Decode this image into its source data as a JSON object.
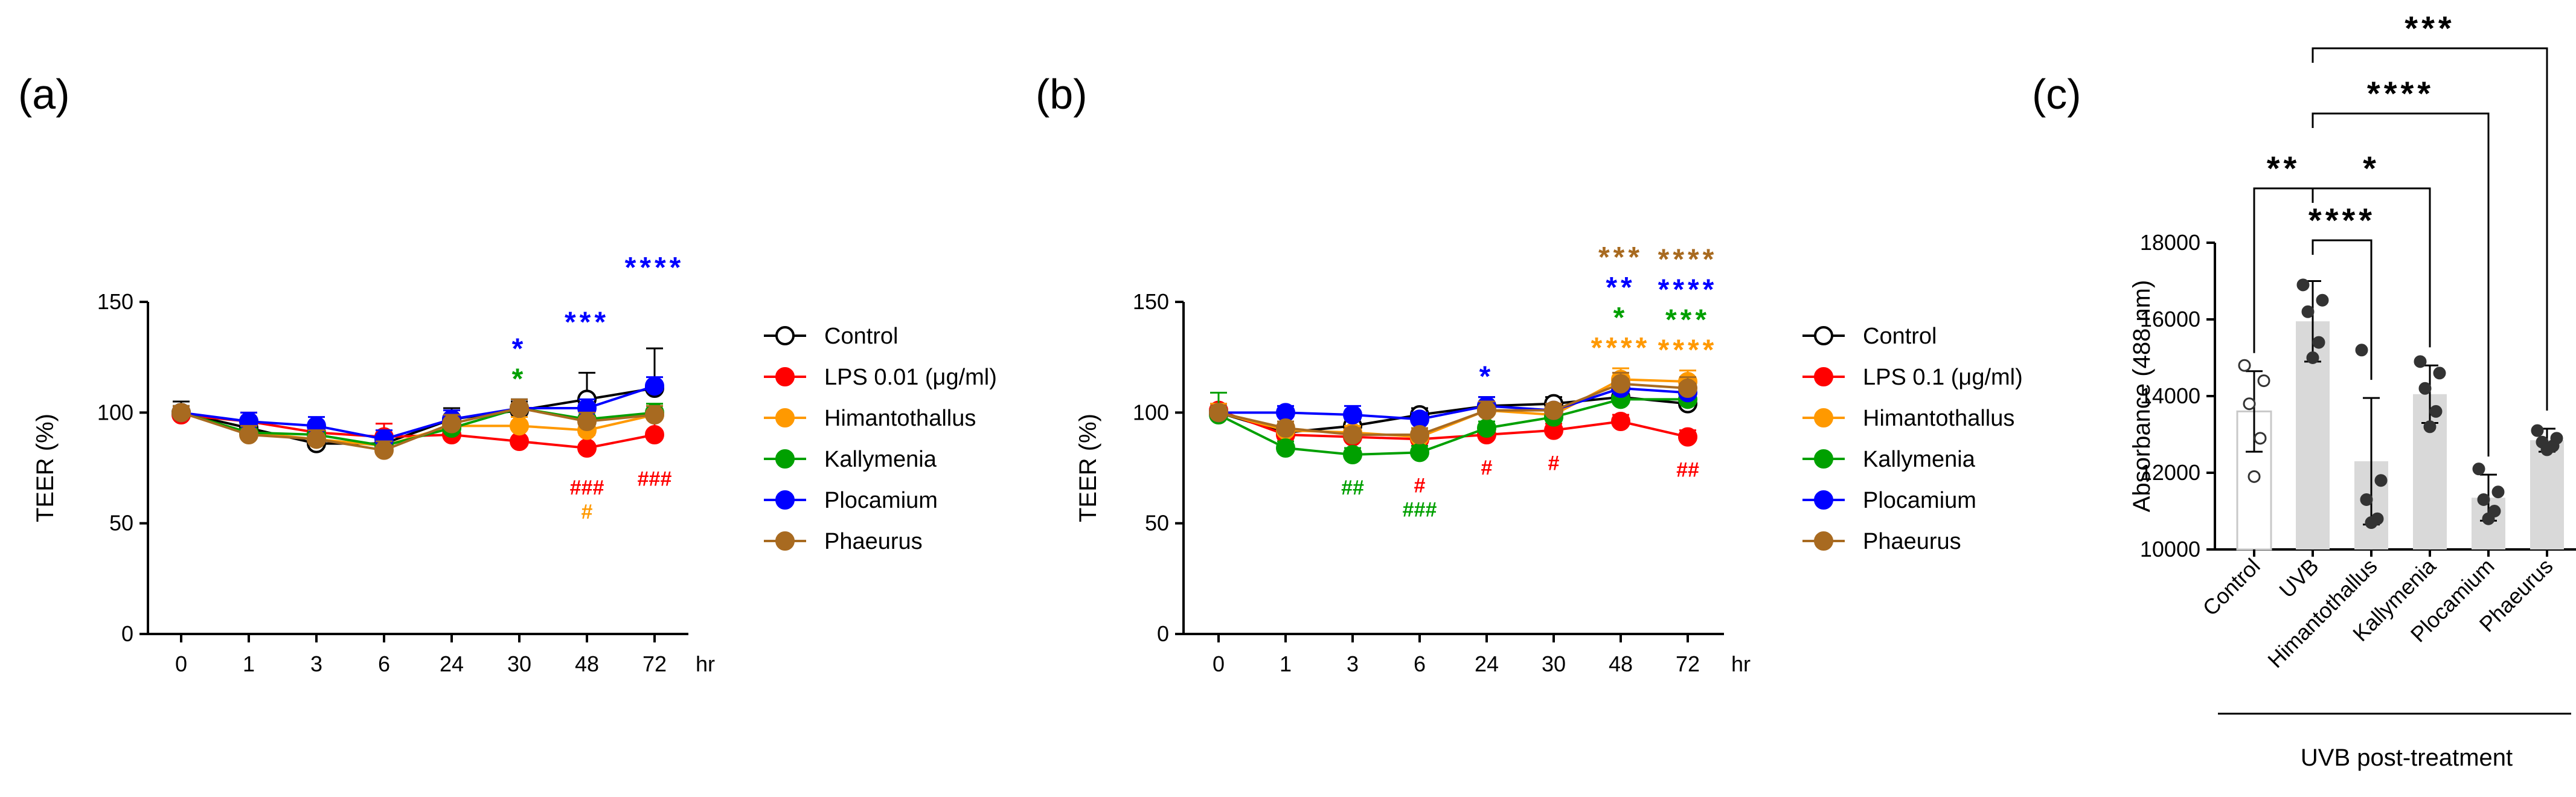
{
  "chart_data": [
    {
      "panel_label": "(a)",
      "type": "line",
      "xlabel": "hr",
      "ylabel": "TEER (%)",
      "ylim": [
        0,
        150
      ],
      "yticks": [
        "0",
        "50",
        "100",
        "150"
      ],
      "categories": [
        "0",
        "1",
        "3",
        "6",
        "24",
        "30",
        "48",
        "72"
      ],
      "series": [
        {
          "name": "Control",
          "color": "#000000",
          "marker": "open",
          "values": [
            100,
            93,
            86,
            86,
            97,
            101,
            106,
            111
          ],
          "err": [
            5,
            4,
            8,
            4,
            5,
            4,
            12,
            18
          ]
        },
        {
          "name": "LPS 0.01 (μg/ml)",
          "color": "#ff0000",
          "marker": "filled",
          "values": [
            99,
            96,
            91,
            89,
            90,
            87,
            84,
            90
          ],
          "err": [
            3,
            4,
            4,
            6,
            5,
            7,
            6,
            8
          ]
        },
        {
          "name": "Himantothallus",
          "color": "#ff9900",
          "marker": "filled",
          "values": [
            100,
            91,
            88,
            85,
            94,
            94,
            92,
            99
          ],
          "err": [
            3,
            4,
            4,
            4,
            4,
            4,
            5,
            4
          ]
        },
        {
          "name": "Kallymenia",
          "color": "#00a000",
          "marker": "filled",
          "values": [
            100,
            91,
            90,
            85,
            93,
            102,
            97,
            100
          ],
          "err": [
            3,
            4,
            4,
            4,
            4,
            4,
            4,
            4
          ]
        },
        {
          "name": "Plocamium",
          "color": "#0000ff",
          "marker": "filled",
          "values": [
            100,
            96,
            94,
            88,
            97,
            102,
            102,
            112
          ],
          "err": [
            3,
            4,
            4,
            4,
            4,
            4,
            4,
            4
          ]
        },
        {
          "name": "Phaeurus",
          "color": "#a86a20",
          "marker": "filled",
          "values": [
            100,
            90,
            88,
            83,
            95,
            102,
            96,
            99
          ],
          "err": [
            3,
            4,
            4,
            4,
            4,
            4,
            4,
            4
          ]
        }
      ],
      "annotations": [
        {
          "x": "30",
          "text": "*",
          "color": "#0000ff",
          "row": 2,
          "kind": "star"
        },
        {
          "x": "30",
          "text": "*",
          "color": "#00a000",
          "row": 1,
          "kind": "star"
        },
        {
          "x": "48",
          "text": "***",
          "color": "#0000ff",
          "row": 2,
          "kind": "star"
        },
        {
          "x": "72",
          "text": "****",
          "color": "#0000ff",
          "row": 3,
          "kind": "star"
        },
        {
          "x": "48",
          "text": "###",
          "color": "#ff0000",
          "row": 1,
          "kind": "hash"
        },
        {
          "x": "48",
          "text": "#",
          "color": "#ff9900",
          "row": 2,
          "kind": "hash"
        },
        {
          "x": "72",
          "text": "###",
          "color": "#ff0000",
          "row": 1,
          "kind": "hash"
        }
      ]
    },
    {
      "panel_label": "(b)",
      "type": "line",
      "xlabel": "hr",
      "ylabel": "TEER (%)",
      "ylim": [
        0,
        150
      ],
      "yticks": [
        "0",
        "50",
        "100",
        "150"
      ],
      "categories": [
        "0",
        "1",
        "3",
        "6",
        "24",
        "30",
        "48",
        "72"
      ],
      "series": [
        {
          "name": "Control",
          "color": "#000000",
          "marker": "open",
          "values": [
            100,
            91,
            94,
            99,
            103,
            104,
            107,
            104
          ],
          "err": [
            3,
            3,
            3,
            3,
            4,
            3,
            5,
            5
          ]
        },
        {
          "name": "LPS 0.1 (μg/ml)",
          "color": "#ff0000",
          "marker": "filled",
          "values": [
            101,
            90,
            89,
            88,
            90,
            92,
            96,
            89
          ],
          "err": [
            3,
            3,
            3,
            3,
            3,
            3,
            3,
            3
          ]
        },
        {
          "name": "Himantothallus",
          "color": "#ff9900",
          "marker": "filled",
          "values": [
            100,
            92,
            91,
            89,
            101,
            99,
            115,
            114
          ],
          "err": [
            4,
            3,
            3,
            3,
            4,
            3,
            5,
            5
          ]
        },
        {
          "name": "Kallymenia",
          "color": "#00a000",
          "marker": "filled",
          "values": [
            99,
            84,
            81,
            82,
            93,
            98,
            106,
            106
          ],
          "err": [
            10,
            3,
            3,
            3,
            3,
            3,
            4,
            4
          ]
        },
        {
          "name": "Plocamium",
          "color": "#0000ff",
          "marker": "filled",
          "values": [
            100,
            100,
            99,
            97,
            103,
            101,
            111,
            109
          ],
          "err": [
            3,
            3,
            4,
            3,
            4,
            3,
            4,
            4
          ]
        },
        {
          "name": "Phaeurus",
          "color": "#a86a20",
          "marker": "filled",
          "values": [
            100,
            93,
            90,
            90,
            101,
            101,
            113,
            111
          ],
          "err": [
            3,
            3,
            3,
            3,
            4,
            3,
            5,
            5
          ]
        }
      ],
      "annotations": [
        {
          "x": "24",
          "text": "*",
          "color": "#0000ff",
          "row": 1,
          "kind": "star"
        },
        {
          "x": "48",
          "text": "****",
          "color": "#ff9900",
          "row": 1,
          "kind": "star"
        },
        {
          "x": "48",
          "text": "*",
          "color": "#00a000",
          "row": 2,
          "kind": "star"
        },
        {
          "x": "48",
          "text": "**",
          "color": "#0000ff",
          "row": 3,
          "kind": "star"
        },
        {
          "x": "48",
          "text": "***",
          "color": "#a86a20",
          "row": 4,
          "kind": "star"
        },
        {
          "x": "72",
          "text": "****",
          "color": "#ff9900",
          "row": 1,
          "kind": "star"
        },
        {
          "x": "72",
          "text": "***",
          "color": "#00a000",
          "row": 2,
          "kind": "star"
        },
        {
          "x": "72",
          "text": "****",
          "color": "#0000ff",
          "row": 3,
          "kind": "star"
        },
        {
          "x": "72",
          "text": "****",
          "color": "#a86a20",
          "row": 4,
          "kind": "star"
        },
        {
          "x": "3",
          "text": "##",
          "color": "#00a000",
          "row": 1,
          "kind": "hash"
        },
        {
          "x": "6",
          "text": "#",
          "color": "#ff0000",
          "row": 1,
          "kind": "hash"
        },
        {
          "x": "6",
          "text": "###",
          "color": "#00a000",
          "row": 2,
          "kind": "hash"
        },
        {
          "x": "24",
          "text": "#",
          "color": "#ff0000",
          "row": 1,
          "kind": "hash"
        },
        {
          "x": "30",
          "text": "#",
          "color": "#ff0000",
          "row": 1,
          "kind": "hash"
        },
        {
          "x": "72",
          "text": "##",
          "color": "#ff0000",
          "row": 1,
          "kind": "hash"
        }
      ]
    },
    {
      "panel_label": "(c)",
      "type": "bar",
      "ylabel": "Absorbance (488 nm)",
      "ylim": [
        10000,
        18000
      ],
      "yticks": [
        "10000",
        "12000",
        "14000",
        "16000",
        "18000"
      ],
      "categories": [
        "Control",
        "UVB",
        "Himantothallus",
        "Kallymenia",
        "Plocamium",
        "Phaeurus"
      ],
      "values": [
        13600,
        15950,
        12300,
        14050,
        11350,
        12850
      ],
      "err": [
        1050,
        1050,
        1650,
        750,
        600,
        300
      ],
      "points": [
        [
          14800,
          14400,
          13800,
          12900,
          11900
        ],
        [
          16900,
          16500,
          16200,
          15400,
          15000
        ],
        [
          15200,
          11800,
          11300,
          10800,
          10700
        ],
        [
          14900,
          14600,
          14200,
          13600,
          13200
        ],
        [
          12100,
          11500,
          11300,
          11000,
          10800
        ],
        [
          13100,
          12900,
          12800,
          12700,
          12600
        ]
      ],
      "bar_colors": [
        "#ffffff",
        "#d9d9d9",
        "#d9d9d9",
        "#d9d9d9",
        "#d9d9d9",
        "#d9d9d9"
      ],
      "group_label": "UVB post-treatment",
      "significance": [
        {
          "from": "Control",
          "to": "UVB",
          "text": "**"
        },
        {
          "from": "UVB",
          "to": "Himantothallus",
          "text": "****"
        },
        {
          "from": "UVB",
          "to": "Kallymenia",
          "text": "*"
        },
        {
          "from": "UVB",
          "to": "Plocamium",
          "text": "****"
        },
        {
          "from": "UVB",
          "to": "Phaeurus",
          "text": "***"
        }
      ]
    }
  ]
}
